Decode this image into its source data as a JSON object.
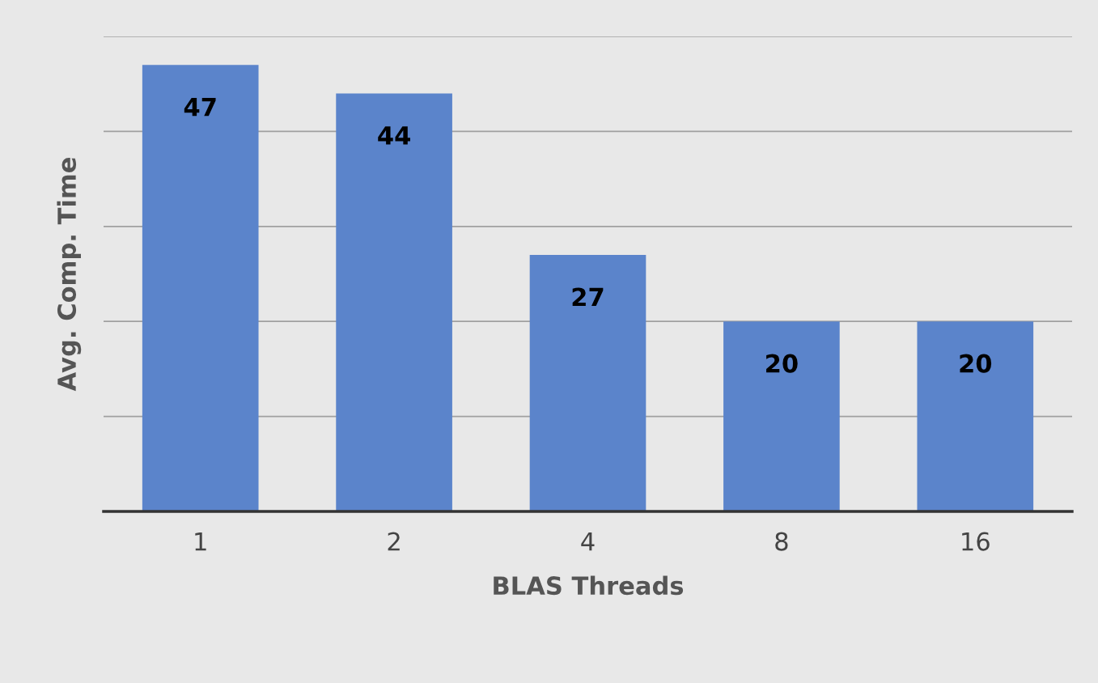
{
  "chart_data": {
    "type": "bar",
    "xlabel": "BLAS Threads",
    "ylabel": "Avg. Comp. Time",
    "categories": [
      "1",
      "2",
      "4",
      "8",
      "16"
    ],
    "values": [
      47,
      44,
      27,
      20,
      20
    ],
    "color": "#5b84cb",
    "ylim": [
      0,
      50
    ],
    "yticks": [
      {
        "value": 0,
        "label": null
      },
      {
        "value": 10,
        "label": null
      },
      {
        "value": 20,
        "label": null
      },
      {
        "value": 30,
        "label": null
      },
      {
        "value": 40,
        "label": null
      },
      {
        "value": 50,
        "label": null
      }
    ],
    "tick_labels": "x",
    "grid": "y",
    "data_labels": true,
    "legend": false
  }
}
